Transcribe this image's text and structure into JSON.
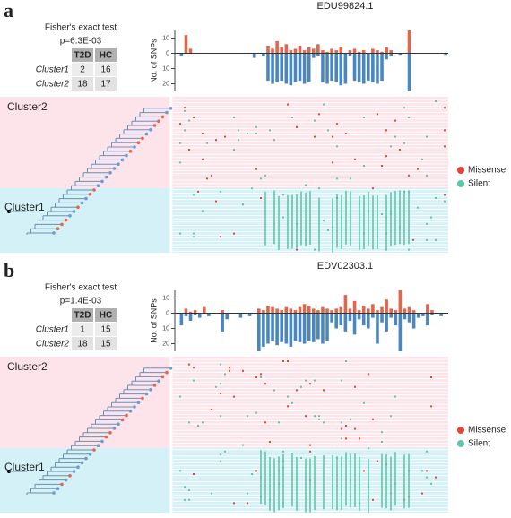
{
  "panels": [
    {
      "label": "a",
      "title": "EDU99824.1",
      "fisher": {
        "title": "Fisher's exact test",
        "p": "p=6.3E-03",
        "header": [
          "T2D",
          "HC"
        ],
        "rows": [
          [
            "Cluster1",
            2,
            16
          ],
          [
            "Cluster2",
            18,
            17
          ]
        ]
      },
      "snp_chart": {
        "type": "bar",
        "ylabel": "No. of SNPs",
        "ylim": [
          -25,
          15
        ],
        "yticks": [
          10,
          0,
          {
            "value": -10,
            "label": "10"
          },
          {
            "value": -20,
            "label": "20"
          }
        ],
        "series": [
          {
            "color": "#e0664c",
            "values": [
              0,
              0,
              12,
              3,
              0,
              0,
              0,
              0,
              0,
              0,
              0,
              0,
              0,
              0,
              0,
              0,
              0,
              0,
              0,
              0,
              5,
              3,
              8,
              4,
              6,
              2,
              3,
              5,
              2,
              4,
              3,
              6,
              2,
              1,
              3,
              2,
              4,
              0,
              2,
              3,
              1,
              2,
              0,
              3,
              2,
              1,
              4,
              2,
              0,
              0,
              0,
              15,
              0,
              0,
              0,
              0,
              0,
              0,
              0,
              0
            ]
          },
          {
            "color": "#4a86c0",
            "values": [
              0,
              -2,
              0,
              0,
              0,
              0,
              0,
              0,
              0,
              0,
              0,
              0,
              0,
              0,
              0,
              0,
              0,
              -3,
              0,
              -2,
              -18,
              -20,
              -19,
              -18,
              -20,
              -21,
              -19,
              -18,
              -20,
              -19,
              -3,
              -2,
              -19,
              -20,
              -18,
              -19,
              -21,
              -20,
              -2,
              -18,
              -19,
              -20,
              -18,
              -19,
              -20,
              -18,
              -4,
              -2,
              0,
              -1,
              0,
              -25,
              0,
              0,
              0,
              0,
              0,
              0,
              0,
              -1
            ]
          }
        ]
      },
      "clusters": [
        "Cluster2",
        "Cluster1"
      ],
      "legend": [
        {
          "name": "Missense",
          "color": "#e4453a"
        },
        {
          "name": "Silent",
          "color": "#5cc8a8"
        }
      ]
    },
    {
      "label": "b",
      "title": "EDV02303.1",
      "fisher": {
        "title": "Fisher's exact test",
        "p": "p=1.4E-03",
        "header": [
          "T2D",
          "HC"
        ],
        "rows": [
          [
            "Cluster1",
            1,
            15
          ],
          [
            "Cluster2",
            18,
            15
          ]
        ]
      },
      "snp_chart": {
        "type": "bar",
        "ylabel": "No. of SNPs",
        "ylim": [
          -25,
          15
        ],
        "yticks": [
          10,
          0,
          {
            "value": -10,
            "label": "10"
          },
          {
            "value": -20,
            "label": "20"
          }
        ],
        "series": [
          {
            "color": "#e0664c",
            "values": [
              0,
              0,
              3,
              1,
              2,
              0,
              4,
              0,
              0,
              0,
              2,
              0,
              0,
              0,
              0,
              0,
              0,
              0,
              3,
              2,
              5,
              4,
              3,
              2,
              4,
              3,
              2,
              4,
              6,
              5,
              3,
              2,
              4,
              3,
              2,
              3,
              4,
              12,
              3,
              8,
              2,
              5,
              3,
              6,
              2,
              4,
              9,
              3,
              2,
              15,
              3,
              4,
              2,
              0,
              0,
              6,
              2,
              0,
              0,
              0
            ]
          },
          {
            "color": "#4a86c0",
            "values": [
              0,
              -8,
              -2,
              -5,
              -1,
              -3,
              0,
              -2,
              0,
              0,
              -12,
              -4,
              0,
              0,
              -3,
              0,
              -2,
              0,
              -25,
              -22,
              -20,
              -18,
              -21,
              -19,
              -20,
              -22,
              -18,
              -19,
              -20,
              -18,
              -19,
              -17,
              -20,
              -18,
              -6,
              -10,
              -8,
              -12,
              -5,
              -14,
              -4,
              -8,
              -10,
              -3,
              -20,
              -6,
              -12,
              -3,
              -8,
              -25,
              -4,
              -6,
              -10,
              -3,
              -2,
              -8,
              -1,
              0,
              -2,
              0
            ]
          }
        ]
      },
      "clusters": [
        "Cluster2",
        "Cluster1"
      ],
      "legend": [
        {
          "name": "Missense",
          "color": "#e4453a"
        },
        {
          "name": "Silent",
          "color": "#5cc8a8"
        }
      ]
    }
  ]
}
